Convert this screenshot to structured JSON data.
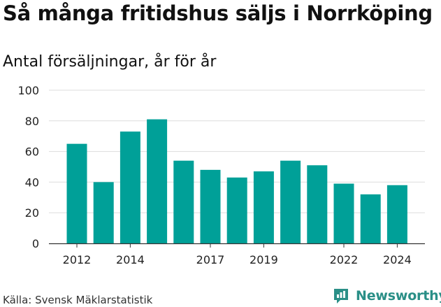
{
  "header": {
    "title": "Så många fritidshus säljs i Norrköping",
    "subtitle": "Antal försäljningar, år för år"
  },
  "footer": {
    "source": "Källa: Svensk Mäklarstatistik",
    "brand": "Newsworthy",
    "brand_icon": "newsworthy-logo-icon"
  },
  "colors": {
    "bar": "#00a098",
    "grid": "#dddddd",
    "axis": "#333333",
    "brand": "#2a8f87"
  },
  "chart_data": {
    "type": "bar",
    "title": "Så många fritidshus säljs i Norrköping",
    "subtitle": "Antal försäljningar, år för år",
    "categories": [
      "2012",
      "2013",
      "2014",
      "2015",
      "2016",
      "2017",
      "2018",
      "2019",
      "2020",
      "2021",
      "2022",
      "2023",
      "2024"
    ],
    "values": [
      65,
      40,
      73,
      81,
      54,
      48,
      43,
      47,
      54,
      51,
      39,
      32,
      38
    ],
    "x_tick_labels": [
      "2012",
      "2014",
      "2017",
      "2019",
      "2022",
      "2024"
    ],
    "y_ticks": [
      0,
      20,
      40,
      60,
      80,
      100
    ],
    "ylim": [
      0,
      100
    ],
    "xlabel": "",
    "ylabel": "",
    "grid": true,
    "legend": "none"
  }
}
